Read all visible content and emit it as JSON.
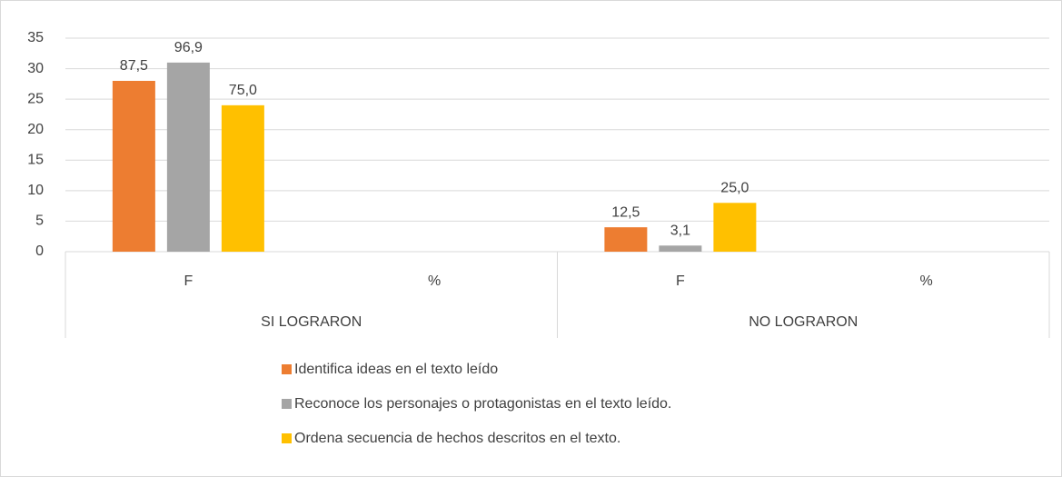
{
  "chart_data": {
    "type": "bar",
    "categories": [
      "F",
      "%",
      "F",
      "%"
    ],
    "groups": [
      "SI LOGRARON",
      "NO LOGRARON"
    ],
    "series": [
      {
        "name": "Identifica ideas en el texto leído",
        "color": "#ed7d31",
        "values": [
          28,
          null,
          4,
          null
        ],
        "data_labels": [
          "87,5",
          null,
          "12,5",
          null
        ]
      },
      {
        "name": "Reconoce los personajes o protagonistas en el texto leído.",
        "color": "#a5a5a5",
        "values": [
          31,
          null,
          1,
          null
        ],
        "data_labels": [
          "96,9",
          null,
          "3,1",
          null
        ]
      },
      {
        "name": "Ordena secuencia de hechos descritos en el texto.",
        "color": "#ffc000",
        "values": [
          24,
          null,
          8,
          null
        ],
        "data_labels": [
          "75,0",
          null,
          "25,0",
          null
        ]
      }
    ],
    "ylim": [
      0,
      35
    ],
    "yticks": [
      0,
      5,
      10,
      15,
      20,
      25,
      30,
      35
    ],
    "grid": true,
    "legend": "bottom"
  }
}
